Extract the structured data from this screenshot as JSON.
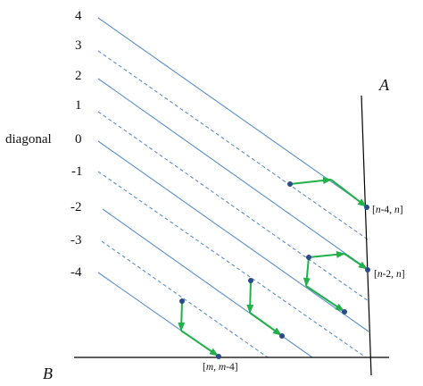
{
  "diagram": {
    "side_label": "diagonal",
    "tick_labels": [
      "4",
      "3",
      "2",
      "1",
      "0",
      "-1",
      "-2",
      "-3",
      "-4"
    ],
    "axis_a": "A",
    "axis_b": "B",
    "point_labels": {
      "p1": {
        "pre": "[",
        "v1": "n",
        "mid1": "-4, ",
        "v2": "n",
        "post": "]"
      },
      "p2": {
        "pre": "[",
        "v1": "n",
        "mid1": "-2, ",
        "v2": "n",
        "post": "]"
      },
      "p3": {
        "pre": "[",
        "v1": "m",
        "mid1": ", ",
        "v2": "m",
        "post": "-4]"
      }
    },
    "colors": {
      "diagonal_line": "#5b8fcf",
      "arrow": "#22b04a",
      "dot": "#2a4a8a",
      "axis": "#000000"
    }
  }
}
